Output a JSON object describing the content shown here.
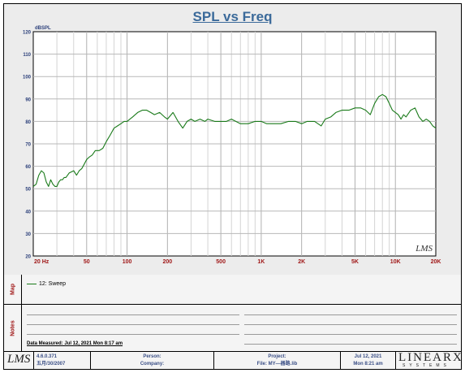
{
  "title": "SPL vs Freq",
  "chart_data": {
    "type": "line",
    "title": "SPL vs Freq",
    "ylabel": "dBSPL",
    "xlabel": "",
    "xscale": "log",
    "xlim": [
      20,
      20000
    ],
    "ylim": [
      20,
      120
    ],
    "yticks": [
      20,
      30,
      40,
      50,
      60,
      70,
      80,
      90,
      100,
      110,
      120
    ],
    "xtick_values": [
      20,
      50,
      100,
      200,
      500,
      1000,
      2000,
      5000,
      10000,
      20000
    ],
    "xtick_labels": [
      "20  Hz",
      "50",
      "100",
      "200",
      "500",
      "1K",
      "2K",
      "5K",
      "10K",
      "20K"
    ],
    "grid": true,
    "series": [
      {
        "name": "12: Sweep",
        "color": "#1a7a1a",
        "x": [
          20,
          21,
          22,
          23,
          24,
          25,
          26,
          27,
          28,
          29,
          30,
          31,
          32,
          33,
          34,
          35,
          37,
          40,
          42,
          44,
          46,
          48,
          50,
          52,
          55,
          58,
          62,
          66,
          70,
          75,
          80,
          85,
          90,
          95,
          100,
          105,
          110,
          120,
          130,
          140,
          150,
          160,
          175,
          190,
          200,
          220,
          240,
          260,
          280,
          300,
          320,
          350,
          380,
          400,
          450,
          500,
          550,
          600,
          700,
          800,
          900,
          1000,
          1100,
          1200,
          1400,
          1600,
          1800,
          2000,
          2200,
          2500,
          2800,
          3000,
          3300,
          3600,
          4000,
          4500,
          5000,
          5500,
          6000,
          6500,
          7000,
          7500,
          8000,
          8500,
          9000,
          9500,
          10000,
          10500,
          11000,
          11500,
          12000,
          13000,
          14000,
          15000,
          16000,
          17000,
          18000,
          19000,
          20000
        ],
        "values": [
          51,
          52,
          56,
          58,
          57,
          53,
          51,
          54,
          52,
          51,
          51,
          53,
          54,
          54,
          55,
          55,
          57,
          58,
          56,
          58,
          59,
          61,
          63,
          64,
          65,
          67,
          67,
          68,
          71,
          74,
          77,
          78,
          79,
          80,
          80,
          81,
          82,
          84,
          85,
          85,
          84,
          83,
          84,
          82,
          81,
          84,
          80,
          77,
          80,
          81,
          80,
          81,
          80,
          81,
          80,
          80,
          80,
          81,
          79,
          79,
          80,
          80,
          79,
          79,
          79,
          80,
          80,
          79,
          80,
          80,
          78,
          81,
          82,
          84,
          85,
          85,
          86,
          86,
          85,
          83,
          88,
          91,
          92,
          91,
          88,
          85,
          84,
          83,
          81,
          83,
          82,
          85,
          86,
          82,
          80,
          81,
          80,
          78,
          77
        ]
      }
    ]
  },
  "legend": {
    "side_label": "Map",
    "entries": [
      "12: Sweep"
    ]
  },
  "notes": {
    "side_label": "Notes",
    "data_measured": "Data Measured: Jul 12, 2021  Mon  8:17 am"
  },
  "footer": {
    "logo": "LMS",
    "version": "4.6.0.371",
    "build_date": "五月/30/2007",
    "person": "Person:",
    "company": "Company:",
    "project": "Project:",
    "file": "File: MY—器路.lib",
    "date": "Jul 12, 2021",
    "time": "Mon  8:21 am",
    "brand_big": "LINEARX",
    "brand_small": "SYSTEMS"
  },
  "watermark": "LMS",
  "colors": {
    "title": "#3b6a9a",
    "trace": "#1a7a1a",
    "axis_labels": "#2b3f7a",
    "x_tick_labels": "#a01818"
  }
}
